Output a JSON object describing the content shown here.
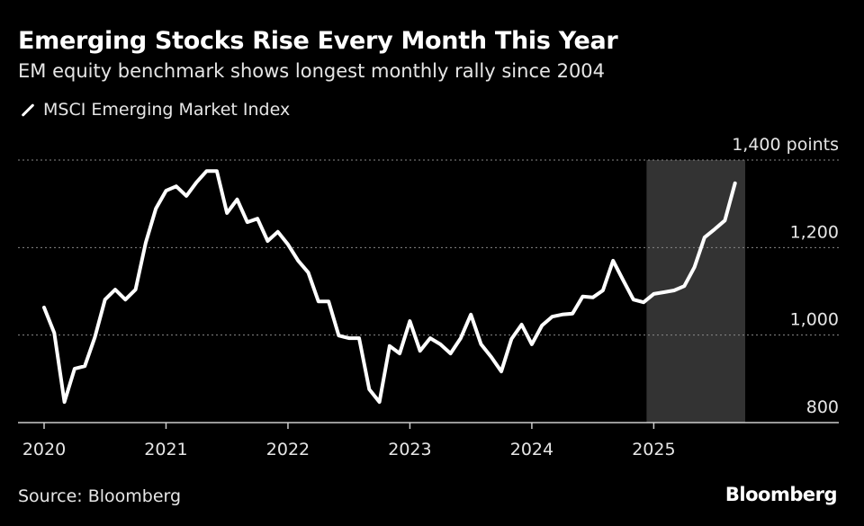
{
  "chart_data": {
    "type": "line",
    "title": "Emerging Stocks Rise Every Month This Year",
    "subtitle": "EM equity benchmark shows longest monthly rally since 2004",
    "legend": [
      {
        "name": "MSCI Emerging Market Index",
        "color": "#ffffff"
      }
    ],
    "legend_placement": "top-left",
    "x_start": "2020-01",
    "x_step": "month",
    "xticks": [
      "2020",
      "2021",
      "2022",
      "2023",
      "2024",
      "2025"
    ],
    "yticks": [
      800,
      1000,
      1200,
      1400
    ],
    "ytick_labels": [
      "800",
      "1,000",
      "1,200",
      "1,400 points"
    ],
    "ylim": [
      800,
      1400
    ],
    "grid": true,
    "highlight": {
      "from": "2025-01",
      "to": "2025-10",
      "color": "#333333"
    },
    "series": [
      {
        "name": "MSCI Emerging Market Index",
        "values": [
          1063,
          1005,
          847,
          923,
          929,
          995,
          1081,
          1104,
          1081,
          1104,
          1211,
          1289,
          1330,
          1340,
          1318,
          1349,
          1375,
          1375,
          1279,
          1310,
          1258,
          1266,
          1215,
          1236,
          1207,
          1170,
          1143,
          1077,
          1077,
          999,
          993,
          993,
          876,
          847,
          975,
          958,
          1032,
          964,
          993,
          979,
          958,
          993,
          1047,
          979,
          950,
          917,
          991,
          1024,
          979,
          1022,
          1042,
          1047,
          1049,
          1088,
          1086,
          1102,
          1170,
          1125,
          1081,
          1075,
          1094,
          1098,
          1102,
          1112,
          1155,
          1223,
          1242,
          1262,
          1347
        ]
      }
    ]
  },
  "source": "Source: Bloomberg",
  "brand": "Bloomberg"
}
